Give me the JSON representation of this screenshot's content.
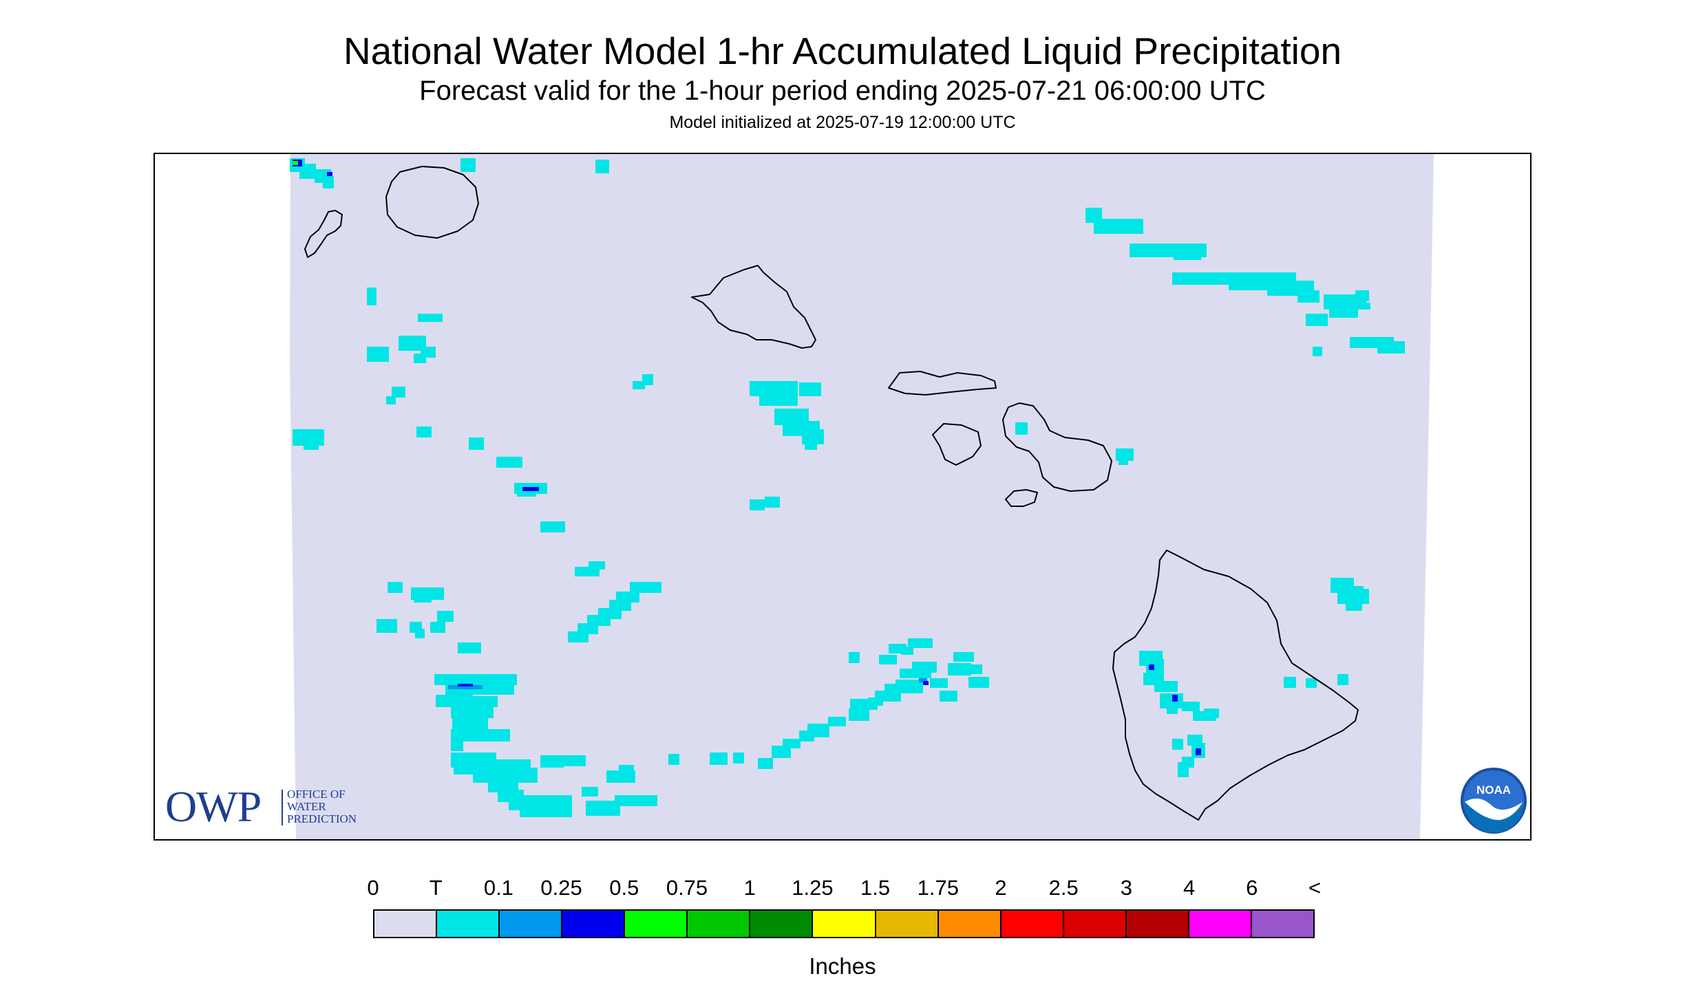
{
  "header": {
    "title": "National Water Model 1-hr Accumulated Liquid Precipitation",
    "subtitle": "Forecast valid for the 1-hour period ending 2025-07-21 06:00:00 UTC",
    "init_line": "Model initialized at 2025-07-19 12:00:00 UTC"
  },
  "map": {
    "domain_fill_color": "#dcdcf0",
    "coastline_color": "#000000",
    "islands": [
      "Niihau",
      "Kauai",
      "Oahu",
      "Molokai",
      "Lanai",
      "Maui",
      "Kahoolawe",
      "Hawaii"
    ]
  },
  "logos": {
    "owp": {
      "letters": "OWP",
      "line1": "OFFICE OF",
      "line2": "WATER",
      "line3": "PREDICTION"
    },
    "noaa": {
      "text": "NOAA"
    }
  },
  "legend": {
    "labels": [
      "0",
      "T",
      "0.1",
      "0.25",
      "0.5",
      "0.75",
      "1",
      "1.25",
      "1.5",
      "1.75",
      "2",
      "2.5",
      "3",
      "4",
      "6",
      "<"
    ],
    "colors": [
      "#dcdcf0",
      "#00e5e5",
      "#0099ee",
      "#0000ee",
      "#00ff00",
      "#00c800",
      "#008c00",
      "#ffff00",
      "#e6b800",
      "#ff8c00",
      "#ff0000",
      "#dc0000",
      "#b40000",
      "#ff00ff",
      "#9955cc"
    ],
    "units": "Inches"
  }
}
